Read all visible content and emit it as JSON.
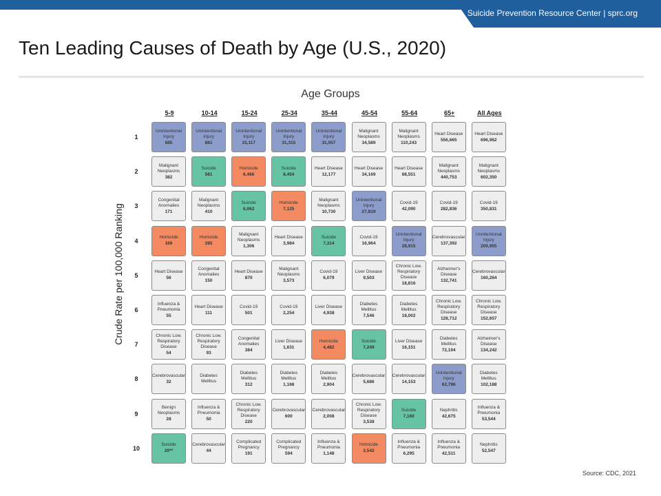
{
  "header": {
    "brand": "Suicide Prevention Resource Center  |  sprc.org"
  },
  "title": "Ten Leading Causes of Death by Age (U.S., 2020)",
  "source": "Source: CDC, 2021",
  "colors": {
    "bar": "#1f5f9e",
    "unintentional_injury": "#8c9dcb",
    "suicide": "#66c3a3",
    "homicide": "#f48a62",
    "other": "#eeeeee"
  },
  "chart_data": {
    "type": "table",
    "title": "Ten Leading Causes of Death by Age (U.S., 2020)",
    "column_title": "Age Groups",
    "row_title": "Crude Rate per 100,000 Ranking",
    "columns": [
      "5-9",
      "10-14",
      "15-24",
      "25-34",
      "35-44",
      "45-54",
      "55-64",
      "65+",
      "All Ages"
    ],
    "ranks": [
      "1",
      "2",
      "3",
      "4",
      "5",
      "6",
      "7",
      "8",
      "9",
      "10"
    ],
    "cells": [
      [
        {
          "cause": "Unintentional Injury",
          "value": "685",
          "color": "injury"
        },
        {
          "cause": "Malignant Neoplasms",
          "value": "382",
          "color": "other"
        },
        {
          "cause": "Congenital Anomalies",
          "value": "171",
          "color": "other"
        },
        {
          "cause": "Homicide",
          "value": "169",
          "color": "homicide"
        },
        {
          "cause": "Heart Disease",
          "value": "56",
          "color": "other"
        },
        {
          "cause": "Influenza & Pneumonia",
          "value": "55",
          "color": "other"
        },
        {
          "cause": "Chronic Low. Respiratory Disease",
          "value": "54",
          "color": "other"
        },
        {
          "cause": "Cerebrovascular",
          "value": "32",
          "color": "other"
        },
        {
          "cause": "Benign Neoplasms",
          "value": "28",
          "color": "other"
        },
        {
          "cause": "Suicide",
          "value": "20**",
          "color": "suicide"
        }
      ],
      [
        {
          "cause": "Unintentional Injury",
          "value": "881",
          "color": "injury"
        },
        {
          "cause": "Suicide",
          "value": "581",
          "color": "suicide"
        },
        {
          "cause": "Malignant Neoplasms",
          "value": "410",
          "color": "other"
        },
        {
          "cause": "Homicide",
          "value": "285",
          "color": "homicide"
        },
        {
          "cause": "Congenital Anomalies",
          "value": "150",
          "color": "other"
        },
        {
          "cause": "Heart Disease",
          "value": "111",
          "color": "other"
        },
        {
          "cause": "Chronic Low. Respiratory Disease",
          "value": "93",
          "color": "other"
        },
        {
          "cause": "Diabetes Mellitus",
          "value": "",
          "color": "other"
        },
        {
          "cause": "Influenza & Pneumonia",
          "value": "50",
          "color": "other"
        },
        {
          "cause": "Cerebrovascular",
          "value": "44",
          "color": "other"
        }
      ],
      [
        {
          "cause": "Unintentional Injury",
          "value": "15,117",
          "color": "injury"
        },
        {
          "cause": "Homicide",
          "value": "6,466",
          "color": "homicide"
        },
        {
          "cause": "Suicide",
          "value": "6,062",
          "color": "suicide"
        },
        {
          "cause": "Malignant Neoplasms",
          "value": "1,306",
          "color": "other"
        },
        {
          "cause": "Heart Disease",
          "value": "870",
          "color": "other"
        },
        {
          "cause": "Covid-19",
          "value": "501",
          "color": "other"
        },
        {
          "cause": "Congenital Anomalies",
          "value": "384",
          "color": "other"
        },
        {
          "cause": "Diabetes Mellitus",
          "value": "312",
          "color": "other"
        },
        {
          "cause": "Chronic Low. Respiratory Disease",
          "value": "220",
          "color": "other"
        },
        {
          "cause": "Complicated Pregnancy",
          "value": "191",
          "color": "other"
        }
      ],
      [
        {
          "cause": "Unintentional Injury",
          "value": "31,315",
          "color": "injury"
        },
        {
          "cause": "Suicide",
          "value": "8,454",
          "color": "suicide"
        },
        {
          "cause": "Homicide",
          "value": "7,125",
          "color": "homicide"
        },
        {
          "cause": "Heart Disease",
          "value": "3,984",
          "color": "other"
        },
        {
          "cause": "Malignant Neoplasms",
          "value": "3,573",
          "color": "other"
        },
        {
          "cause": "Covid-19",
          "value": "2,254",
          "color": "other"
        },
        {
          "cause": "Liver Disease",
          "value": "1,631",
          "color": "other"
        },
        {
          "cause": "Diabetes Mellitus",
          "value": "1,168",
          "color": "other"
        },
        {
          "cause": "Cerebrovascular",
          "value": "600",
          "color": "other"
        },
        {
          "cause": "Complicated Pregnancy",
          "value": "594",
          "color": "other"
        }
      ],
      [
        {
          "cause": "Unintentional Injury",
          "value": "31,057",
          "color": "injury"
        },
        {
          "cause": "Heart Disease",
          "value": "12,177",
          "color": "other"
        },
        {
          "cause": "Malignant Neoplasms",
          "value": "10,730",
          "color": "other"
        },
        {
          "cause": "Suicide",
          "value": "7,314",
          "color": "suicide"
        },
        {
          "cause": "Covid-19",
          "value": "6,079",
          "color": "other"
        },
        {
          "cause": "Liver Disease",
          "value": "4,938",
          "color": "other"
        },
        {
          "cause": "Homicide",
          "value": "4,482",
          "color": "homicide"
        },
        {
          "cause": "Diabetes Mellitus",
          "value": "2,904",
          "color": "other"
        },
        {
          "cause": "Cerebrovascular",
          "value": "2,008",
          "color": "other"
        },
        {
          "cause": "Influenza & Pneumonia",
          "value": "1,148",
          "color": "other"
        }
      ],
      [
        {
          "cause": "Malignant Neoplasms",
          "value": "34,589",
          "color": "other"
        },
        {
          "cause": "Heart Disease",
          "value": "34,169",
          "color": "other"
        },
        {
          "cause": "Unintentional Injury",
          "value": "27,819",
          "color": "injury"
        },
        {
          "cause": "Covid-19",
          "value": "16,964",
          "color": "other"
        },
        {
          "cause": "Liver Disease",
          "value": "9,503",
          "color": "other"
        },
        {
          "cause": "Diabetes Mellitus",
          "value": "7,546",
          "color": "other"
        },
        {
          "cause": "Suicide",
          "value": "7,249",
          "color": "suicide"
        },
        {
          "cause": "Cerebrovascular",
          "value": "5,686",
          "color": "other"
        },
        {
          "cause": "Chronic Low. Respiratory Disease",
          "value": "3,538",
          "color": "other"
        },
        {
          "cause": "Homicide",
          "value": "2,542",
          "color": "homicide"
        }
      ],
      [
        {
          "cause": "Malignant Neoplasms",
          "value": "110,243",
          "color": "other"
        },
        {
          "cause": "Heart Disease",
          "value": "88,551",
          "color": "other"
        },
        {
          "cause": "Covid-19",
          "value": "42,090",
          "color": "other"
        },
        {
          "cause": "Unintentional Injury",
          "value": "28,915",
          "color": "injury"
        },
        {
          "cause": "Chronic Low. Respiratory Disease",
          "value": "18,816",
          "color": "other"
        },
        {
          "cause": "Diabetes Mellitus",
          "value": "18,002",
          "color": "other"
        },
        {
          "cause": "Liver Disease",
          "value": "16,151",
          "color": "other"
        },
        {
          "cause": "Cerebrovascular",
          "value": "14,153",
          "color": "other"
        },
        {
          "cause": "Suicide",
          "value": "7,160",
          "color": "suicide"
        },
        {
          "cause": "Influenza & Pneumonia",
          "value": "6,295",
          "color": "other"
        }
      ],
      [
        {
          "cause": "Heart Disease",
          "value": "556,665",
          "color": "other"
        },
        {
          "cause": "Malignant Neoplasms",
          "value": "440,753",
          "color": "other"
        },
        {
          "cause": "Covid-19",
          "value": "282,836",
          "color": "other"
        },
        {
          "cause": "Cerebrovascular",
          "value": "137,392",
          "color": "other"
        },
        {
          "cause": "Alzheimer's Disease",
          "value": "132,741",
          "color": "other"
        },
        {
          "cause": "Chronic Low. Respiratory Disease",
          "value": "128,712",
          "color": "other"
        },
        {
          "cause": "Diabetes Mellitus",
          "value": "72,194",
          "color": "other"
        },
        {
          "cause": "Unintentional Injury",
          "value": "62,796",
          "color": "injury"
        },
        {
          "cause": "Nephritis",
          "value": "42,675",
          "color": "other"
        },
        {
          "cause": "Influenza & Pneumonia",
          "value": "42,511",
          "color": "other"
        }
      ],
      [
        {
          "cause": "Heart Disease",
          "value": "696,962",
          "color": "other"
        },
        {
          "cause": "Malignant Neoplasms",
          "value": "602,350",
          "color": "other"
        },
        {
          "cause": "Covid-19",
          "value": "350,831",
          "color": "other"
        },
        {
          "cause": "Unintentional Injury",
          "value": "200,955",
          "color": "injury"
        },
        {
          "cause": "Cerebrovascular",
          "value": "160,264",
          "color": "other"
        },
        {
          "cause": "Chronic Low. Respiratory Disease",
          "value": "152,657",
          "color": "other"
        },
        {
          "cause": "Alzheimer's Disease",
          "value": "134,242",
          "color": "other"
        },
        {
          "cause": "Diabetes Mellitus",
          "value": "102,188",
          "color": "other"
        },
        {
          "cause": "Influenza & Pneumonia",
          "value": "53,544",
          "color": "other"
        },
        {
          "cause": "Nephritis",
          "value": "52,547",
          "color": "other"
        }
      ]
    ]
  }
}
